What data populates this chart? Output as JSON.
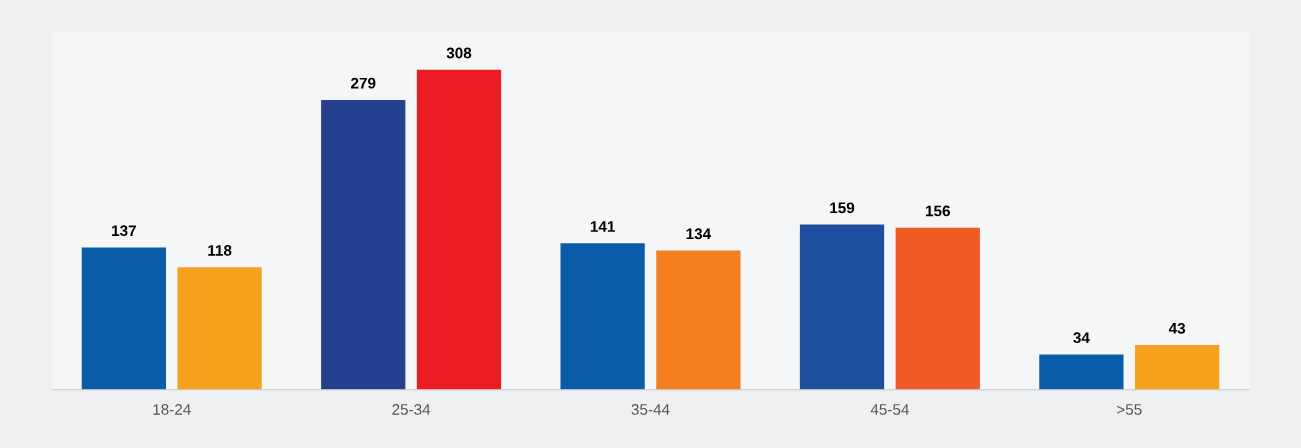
{
  "chart_data": {
    "type": "bar",
    "categories": [
      "18-24",
      "25-34",
      "35-44",
      "45-54",
      ">55"
    ],
    "series": [
      {
        "colors": [
          "#0b5ca8",
          "#25408f",
          "#0b5ca8",
          "#1d4f9e",
          "#0b5ca8"
        ],
        "values": [
          137,
          279,
          141,
          159,
          34
        ]
      },
      {
        "colors": [
          "#f6a01e",
          "#ec1c24",
          "#f47f20",
          "#f05a24",
          "#f6a01e"
        ],
        "values": [
          118,
          308,
          134,
          156,
          43
        ]
      }
    ],
    "data_labels": true,
    "grid": false,
    "legend": false,
    "tick_labels": "x"
  }
}
